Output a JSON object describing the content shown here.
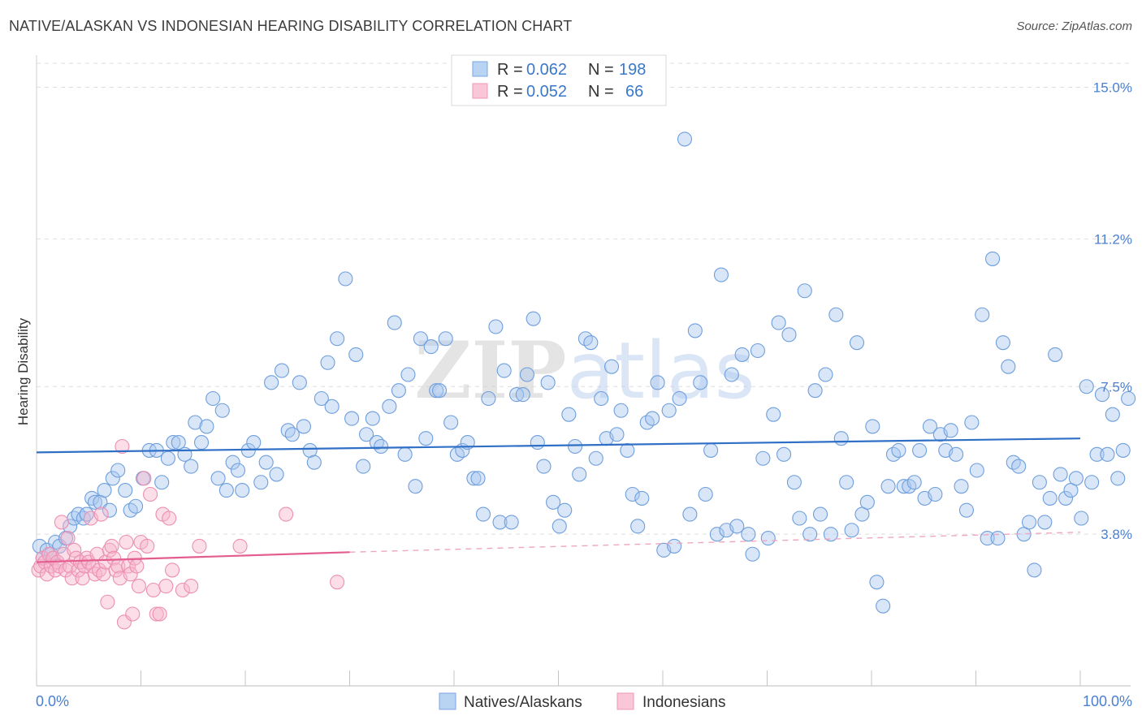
{
  "header": {
    "title": "NATIVE/ALASKAN VS INDONESIAN HEARING DISABILITY CORRELATION CHART",
    "source": "Source: ZipAtlas.com"
  },
  "watermark": "ZIPatlas",
  "legend_top": [
    {
      "r_label": "R =",
      "r_value": "0.062",
      "n_label": "N =",
      "n_value": "198",
      "color": "#a8c8f0"
    },
    {
      "r_label": "R =",
      "r_value": "0.052",
      "n_label": "N =",
      "n_value": "66",
      "color": "#f6b6cb"
    }
  ],
  "legend_bottom": [
    {
      "label": "Natives/Alaskans",
      "color": "#a8c8f0"
    },
    {
      "label": "Indonesians",
      "color": "#f6b6cb"
    }
  ],
  "chart_data": {
    "type": "scatter",
    "title": "NATIVE/ALASKAN VS INDONESIAN HEARING DISABILITY CORRELATION CHART",
    "xlabel": "",
    "ylabel": "Hearing Disability",
    "x_tick_labels": [
      "0.0%",
      "100.0%"
    ],
    "y_tick_labels": [
      "3.8%",
      "7.5%",
      "11.2%",
      "15.0%"
    ],
    "y_ticks": [
      3.8,
      7.5,
      11.2,
      15.0
    ],
    "xlim": [
      0,
      100
    ],
    "ylim": [
      0,
      15.6
    ],
    "grid": "horizontal dashed",
    "legend_placement": "top-center",
    "series": [
      {
        "name": "Natives/Alaskans",
        "color": "#4a90e2",
        "trend": {
          "x": [
            0,
            100
          ],
          "y": [
            5.85,
            6.2
          ],
          "style": "solid",
          "color": "#2f6fc6"
        },
        "points": [
          [
            0.3,
            3.5
          ],
          [
            0.6,
            3.2
          ],
          [
            1.0,
            3.4
          ],
          [
            1.4,
            3.3
          ],
          [
            1.8,
            3.6
          ],
          [
            2.2,
            3.5
          ],
          [
            2.8,
            3.7
          ],
          [
            3.2,
            4.0
          ],
          [
            3.6,
            4.2
          ],
          [
            4.0,
            4.3
          ],
          [
            4.5,
            4.2
          ],
          [
            4.8,
            4.3
          ],
          [
            5.3,
            4.7
          ],
          [
            5.6,
            4.6
          ],
          [
            6.1,
            4.6
          ],
          [
            6.5,
            4.9
          ],
          [
            7.0,
            4.4
          ],
          [
            7.3,
            5.2
          ],
          [
            7.8,
            5.4
          ],
          [
            8.5,
            4.9
          ],
          [
            9.0,
            4.4
          ],
          [
            9.5,
            4.5
          ],
          [
            10.2,
            5.2
          ],
          [
            10.8,
            5.9
          ],
          [
            11.5,
            5.9
          ],
          [
            12.0,
            5.1
          ],
          [
            12.6,
            5.7
          ],
          [
            13.1,
            6.1
          ],
          [
            13.6,
            6.1
          ],
          [
            14.2,
            5.8
          ],
          [
            14.8,
            5.5
          ],
          [
            15.2,
            6.6
          ],
          [
            15.8,
            6.1
          ],
          [
            16.3,
            6.5
          ],
          [
            16.9,
            7.2
          ],
          [
            17.4,
            5.2
          ],
          [
            17.8,
            6.9
          ],
          [
            18.2,
            4.9
          ],
          [
            18.8,
            5.6
          ],
          [
            19.3,
            5.4
          ],
          [
            19.7,
            4.9
          ],
          [
            20.3,
            5.9
          ],
          [
            20.8,
            6.1
          ],
          [
            21.5,
            5.1
          ],
          [
            22.0,
            5.6
          ],
          [
            22.5,
            7.6
          ],
          [
            23.0,
            5.3
          ],
          [
            23.5,
            7.9
          ],
          [
            24.1,
            6.4
          ],
          [
            24.5,
            6.3
          ],
          [
            25.2,
            7.6
          ],
          [
            25.6,
            6.5
          ],
          [
            26.2,
            5.9
          ],
          [
            26.6,
            5.6
          ],
          [
            27.3,
            7.2
          ],
          [
            27.9,
            8.1
          ],
          [
            28.3,
            7.0
          ],
          [
            28.8,
            8.7
          ],
          [
            29.6,
            10.2
          ],
          [
            30.2,
            6.7
          ],
          [
            30.6,
            8.3
          ],
          [
            31.3,
            5.5
          ],
          [
            31.6,
            6.3
          ],
          [
            32.2,
            6.7
          ],
          [
            32.6,
            6.1
          ],
          [
            33.0,
            6.0
          ],
          [
            33.8,
            7.0
          ],
          [
            34.3,
            9.1
          ],
          [
            34.7,
            7.4
          ],
          [
            35.3,
            5.8
          ],
          [
            35.6,
            7.8
          ],
          [
            36.3,
            5.0
          ],
          [
            36.8,
            8.7
          ],
          [
            37.3,
            6.2
          ],
          [
            37.8,
            8.5
          ],
          [
            38.3,
            7.4
          ],
          [
            38.6,
            7.4
          ],
          [
            39.2,
            8.7
          ],
          [
            39.7,
            6.6
          ],
          [
            40.3,
            5.8
          ],
          [
            40.8,
            5.9
          ],
          [
            41.3,
            6.1
          ],
          [
            41.9,
            5.2
          ],
          [
            42.3,
            5.2
          ],
          [
            42.8,
            4.3
          ],
          [
            43.3,
            7.2
          ],
          [
            44.0,
            9.0
          ],
          [
            44.4,
            4.1
          ],
          [
            44.8,
            7.9
          ],
          [
            45.5,
            4.1
          ],
          [
            46.0,
            7.3
          ],
          [
            46.6,
            7.3
          ],
          [
            47.0,
            7.8
          ],
          [
            47.6,
            9.2
          ],
          [
            48.0,
            6.1
          ],
          [
            48.6,
            5.5
          ],
          [
            49.0,
            7.6
          ],
          [
            49.5,
            4.6
          ],
          [
            50.1,
            4.0
          ],
          [
            50.6,
            4.4
          ],
          [
            51.0,
            6.8
          ],
          [
            51.6,
            6.0
          ],
          [
            52.0,
            5.3
          ],
          [
            52.6,
            8.7
          ],
          [
            53.1,
            8.6
          ],
          [
            53.6,
            5.7
          ],
          [
            54.1,
            7.2
          ],
          [
            54.6,
            6.2
          ],
          [
            55.1,
            8.0
          ],
          [
            55.6,
            6.3
          ],
          [
            56.0,
            6.9
          ],
          [
            56.6,
            5.9
          ],
          [
            57.1,
            4.8
          ],
          [
            57.6,
            4.0
          ],
          [
            58.0,
            4.7
          ],
          [
            58.5,
            6.6
          ],
          [
            59.0,
            6.7
          ],
          [
            59.5,
            7.6
          ],
          [
            60.1,
            3.4
          ],
          [
            60.6,
            6.9
          ],
          [
            61.1,
            3.5
          ],
          [
            61.6,
            7.2
          ],
          [
            62.1,
            13.7
          ],
          [
            62.6,
            4.3
          ],
          [
            63.1,
            8.9
          ],
          [
            63.6,
            7.6
          ],
          [
            64.1,
            4.8
          ],
          [
            64.6,
            5.9
          ],
          [
            65.2,
            3.8
          ],
          [
            65.6,
            10.3
          ],
          [
            66.1,
            3.9
          ],
          [
            66.6,
            7.8
          ],
          [
            67.1,
            4.0
          ],
          [
            67.6,
            8.3
          ],
          [
            68.2,
            3.8
          ],
          [
            68.6,
            3.3
          ],
          [
            69.1,
            8.4
          ],
          [
            69.6,
            5.7
          ],
          [
            70.1,
            3.7
          ],
          [
            70.6,
            6.8
          ],
          [
            71.1,
            9.1
          ],
          [
            71.6,
            5.8
          ],
          [
            72.1,
            8.8
          ],
          [
            72.6,
            5.1
          ],
          [
            73.1,
            4.2
          ],
          [
            73.6,
            9.9
          ],
          [
            74.1,
            3.8
          ],
          [
            74.6,
            7.4
          ],
          [
            75.1,
            4.3
          ],
          [
            75.6,
            7.8
          ],
          [
            76.1,
            3.8
          ],
          [
            76.6,
            9.3
          ],
          [
            77.1,
            6.2
          ],
          [
            77.6,
            5.1
          ],
          [
            78.1,
            3.9
          ],
          [
            78.6,
            8.6
          ],
          [
            79.1,
            4.3
          ],
          [
            79.6,
            4.6
          ],
          [
            80.1,
            6.5
          ],
          [
            80.5,
            2.6
          ],
          [
            81.1,
            2.0
          ],
          [
            81.6,
            5.0
          ],
          [
            82.1,
            5.8
          ],
          [
            82.6,
            5.9
          ],
          [
            83.1,
            5.0
          ],
          [
            83.6,
            5.0
          ],
          [
            84.1,
            5.1
          ],
          [
            84.6,
            5.9
          ],
          [
            85.1,
            4.7
          ],
          [
            85.6,
            6.5
          ],
          [
            86.1,
            4.8
          ],
          [
            86.6,
            6.3
          ],
          [
            87.1,
            5.9
          ],
          [
            87.6,
            6.4
          ],
          [
            88.1,
            5.8
          ],
          [
            88.6,
            5.0
          ],
          [
            89.1,
            4.4
          ],
          [
            89.6,
            6.6
          ],
          [
            90.1,
            5.4
          ],
          [
            90.6,
            9.3
          ],
          [
            91.1,
            3.7
          ],
          [
            91.6,
            10.7
          ],
          [
            92.1,
            3.7
          ],
          [
            92.6,
            8.6
          ],
          [
            93.1,
            8.0
          ],
          [
            93.6,
            5.6
          ],
          [
            94.1,
            5.5
          ],
          [
            94.6,
            3.8
          ],
          [
            95.1,
            4.1
          ],
          [
            95.6,
            2.9
          ],
          [
            96.1,
            5.1
          ],
          [
            96.6,
            4.1
          ],
          [
            97.1,
            4.7
          ],
          [
            97.6,
            8.3
          ],
          [
            98.1,
            5.3
          ],
          [
            98.6,
            4.7
          ],
          [
            99.1,
            4.9
          ],
          [
            99.6,
            5.2
          ],
          [
            100.1,
            4.2
          ],
          [
            100.6,
            7.5
          ],
          [
            101.1,
            5.1
          ],
          [
            101.6,
            5.8
          ],
          [
            102.1,
            7.3
          ],
          [
            102.6,
            5.8
          ],
          [
            103.1,
            6.8
          ],
          [
            103.6,
            5.2
          ],
          [
            104.1,
            5.9
          ],
          [
            104.6,
            7.2
          ]
        ]
      },
      {
        "name": "Indonesians",
        "color": "#ee7fa6",
        "trend": {
          "x": [
            0,
            30
          ],
          "y": [
            3.1,
            3.35
          ],
          "style": "solid",
          "dashed_extension_to": [
            100,
            3.85
          ],
          "color": "#e35d8e"
        },
        "points": [
          [
            0.2,
            2.9
          ],
          [
            0.4,
            3.0
          ],
          [
            0.6,
            3.2
          ],
          [
            0.8,
            3.1
          ],
          [
            1.0,
            2.8
          ],
          [
            1.2,
            3.3
          ],
          [
            1.4,
            3.0
          ],
          [
            1.6,
            3.2
          ],
          [
            1.8,
            2.9
          ],
          [
            2.0,
            3.1
          ],
          [
            2.2,
            3.0
          ],
          [
            2.4,
            4.1
          ],
          [
            2.6,
            3.3
          ],
          [
            2.8,
            2.9
          ],
          [
            3.0,
            3.7
          ],
          [
            3.2,
            3.0
          ],
          [
            3.4,
            2.7
          ],
          [
            3.6,
            3.4
          ],
          [
            3.8,
            3.2
          ],
          [
            4.0,
            2.9
          ],
          [
            4.2,
            3.1
          ],
          [
            4.4,
            2.7
          ],
          [
            4.6,
            3.0
          ],
          [
            4.8,
            3.2
          ],
          [
            5.0,
            3.1
          ],
          [
            5.2,
            4.2
          ],
          [
            5.4,
            3.0
          ],
          [
            5.6,
            2.8
          ],
          [
            5.8,
            3.3
          ],
          [
            6.0,
            2.9
          ],
          [
            6.2,
            4.3
          ],
          [
            6.4,
            2.8
          ],
          [
            6.6,
            3.1
          ],
          [
            6.8,
            2.1
          ],
          [
            7.0,
            3.4
          ],
          [
            7.2,
            3.5
          ],
          [
            7.4,
            3.2
          ],
          [
            7.6,
            2.9
          ],
          [
            7.8,
            3.0
          ],
          [
            8.0,
            2.7
          ],
          [
            8.2,
            6.0
          ],
          [
            8.4,
            1.6
          ],
          [
            8.6,
            3.6
          ],
          [
            8.8,
            3.0
          ],
          [
            9.0,
            2.8
          ],
          [
            9.2,
            1.8
          ],
          [
            9.4,
            3.2
          ],
          [
            9.6,
            3.0
          ],
          [
            9.8,
            2.5
          ],
          [
            10.0,
            3.6
          ],
          [
            10.3,
            5.2
          ],
          [
            10.6,
            3.5
          ],
          [
            10.9,
            4.8
          ],
          [
            11.2,
            2.4
          ],
          [
            11.5,
            1.8
          ],
          [
            11.8,
            1.8
          ],
          [
            12.1,
            4.3
          ],
          [
            12.4,
            2.5
          ],
          [
            12.7,
            4.2
          ],
          [
            13.0,
            2.9
          ],
          [
            14.0,
            2.4
          ],
          [
            14.8,
            2.5
          ],
          [
            15.6,
            3.5
          ],
          [
            19.5,
            3.5
          ],
          [
            23.9,
            4.3
          ],
          [
            28.8,
            2.6
          ]
        ]
      }
    ]
  }
}
